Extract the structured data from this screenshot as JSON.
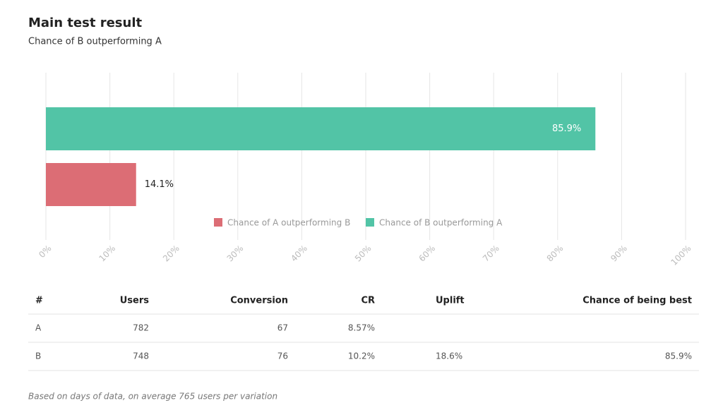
{
  "chart_data": {
    "type": "bar",
    "orientation": "horizontal",
    "title": "Main test result",
    "subtitle": "Chance of B outperforming A",
    "categories": [
      null
    ],
    "series": [
      {
        "name": "Chance of A outperforming B",
        "color": "#dc6d75",
        "values": [
          14.1
        ],
        "value_labels": [
          "14.1%"
        ]
      },
      {
        "name": "Chance of B outperforming A",
        "color": "#52c4a6",
        "values": [
          85.9
        ],
        "value_labels": [
          "85.9%"
        ]
      }
    ],
    "xlim": [
      0,
      100
    ],
    "xticks": [
      {
        "value": 0,
        "label": "0%"
      },
      {
        "value": 10,
        "label": "10%"
      },
      {
        "value": 20,
        "label": "20%"
      },
      {
        "value": 30,
        "label": "30%"
      },
      {
        "value": 40,
        "label": "40%"
      },
      {
        "value": 50,
        "label": "50%"
      },
      {
        "value": 60,
        "label": "60%"
      },
      {
        "value": 70,
        "label": "70%"
      },
      {
        "value": 80,
        "label": "80%"
      },
      {
        "value": 90,
        "label": "90%"
      },
      {
        "value": 100,
        "label": "100%"
      }
    ],
    "grid": true,
    "legend": "bottom"
  },
  "table": {
    "headers": [
      "#",
      "Users",
      "Conversion",
      "CR",
      "Uplift",
      "Chance of being best"
    ],
    "rows": [
      [
        "A",
        "782",
        "67",
        "8.57%",
        null,
        null
      ],
      [
        "B",
        "748",
        "76",
        "10.2%",
        "18.6%",
        "85.9%"
      ]
    ]
  },
  "footnote": "Based on days of data, on average 765 users per variation"
}
